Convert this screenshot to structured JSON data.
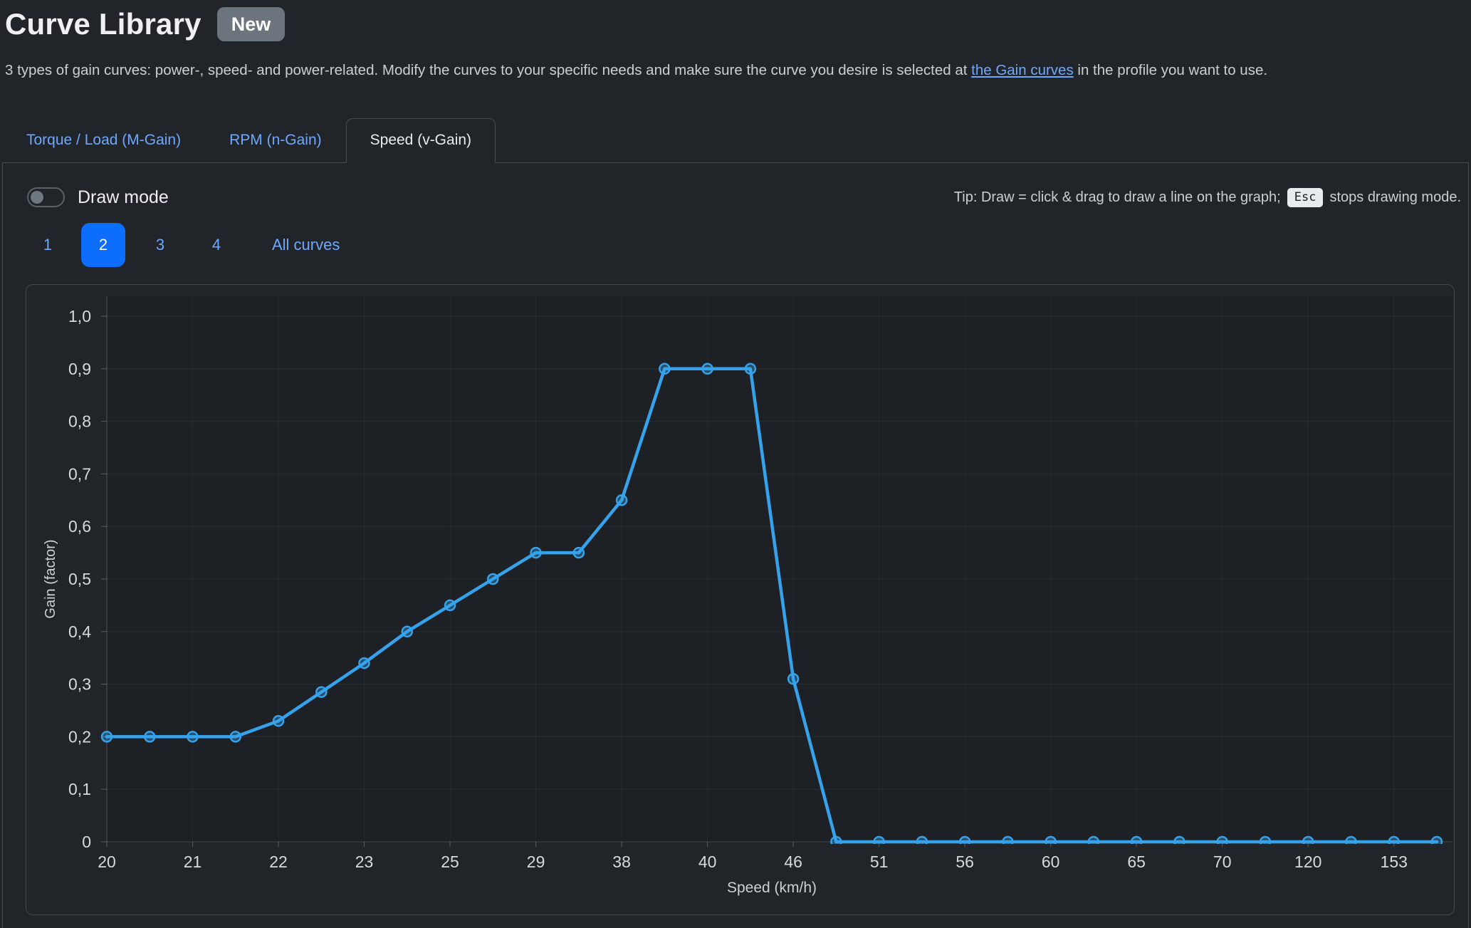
{
  "page": {
    "title": "Curve Library",
    "title_badge": "New"
  },
  "description": {
    "before": "3 types of gain curves: power-, speed- and power-related. Modify the curves to your specific needs and make sure the curve you desire is selected at ",
    "link_text": "the Gain curves",
    "after": " in the profile you want to use."
  },
  "tabs": [
    {
      "label": "Torque / Load (M-Gain)",
      "active": false
    },
    {
      "label": "RPM (n-Gain)",
      "active": false
    },
    {
      "label": "Speed (v-Gain)",
      "active": true
    }
  ],
  "toolbar": {
    "draw_mode_label": "Draw mode",
    "draw_mode_enabled": false,
    "tip_before": "Tip: Draw = click & drag to draw a line on the graph;",
    "tip_key": "Esc",
    "tip_after": "stops drawing mode."
  },
  "curve_selector": {
    "items": [
      {
        "label": "1",
        "active": false
      },
      {
        "label": "2",
        "active": true
      },
      {
        "label": "3",
        "active": false
      },
      {
        "label": "4",
        "active": false
      },
      {
        "label": "All curves",
        "active": false
      }
    ]
  },
  "colors": {
    "page_background": "#212529",
    "primary_button": "#0d6efd",
    "link": "#6ea8fe",
    "line": "#36a2eb",
    "badge": "#6c757d",
    "plot_background": "#1d2125"
  },
  "chart_data": {
    "type": "line",
    "xlabel": "Speed (km/h)",
    "ylabel": "Gain (factor)",
    "ylim": [
      0,
      1
    ],
    "grid": true,
    "decimal_separator": ",",
    "y_tick_labels": [
      "0",
      "0,1",
      "0,2",
      "0,3",
      "0,4",
      "0,5",
      "0,6",
      "0,7",
      "0,8",
      "0,9",
      "1,0"
    ],
    "x_tick_labels": [
      "20",
      "21",
      "22",
      "23",
      "25",
      "29",
      "38",
      "40",
      "46",
      "51",
      "56",
      "60",
      "65",
      "70",
      "120",
      "153"
    ],
    "x_ticks_every_other_point": true,
    "series": [
      {
        "values": [
          0.2,
          0.2,
          0.2,
          0.2,
          0.23,
          0.285,
          0.34,
          0.4,
          0.45,
          0.5,
          0.55,
          0.55,
          0.65,
          0.9,
          0.9,
          0.9,
          0.31,
          0,
          0,
          0,
          0,
          0,
          0,
          0,
          0,
          0,
          0,
          0,
          0,
          0,
          0,
          0
        ]
      }
    ]
  }
}
